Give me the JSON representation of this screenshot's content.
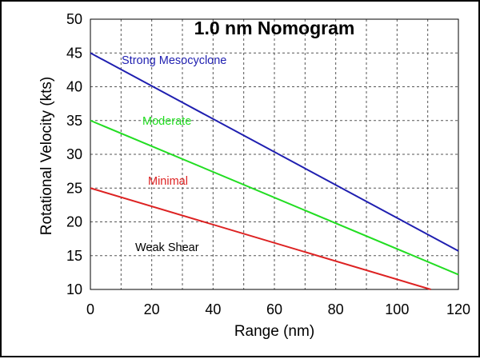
{
  "chart_data": {
    "type": "line",
    "title": "1.0 nm Nomogram",
    "xlabel": "Range (nm)",
    "ylabel": "Rotational Velocity (kts)",
    "xlim": [
      0,
      120
    ],
    "ylim": [
      10,
      50
    ],
    "x_ticks": [
      "0",
      "20",
      "40",
      "60",
      "80",
      "100",
      "120"
    ],
    "y_ticks": [
      "10",
      "15",
      "20",
      "25",
      "30",
      "35",
      "40",
      "45",
      "50"
    ],
    "grid": true,
    "series": [
      {
        "name": "Strong Mesocyclone",
        "color": "#1f1fb0",
        "points": [
          [
            0,
            45
          ],
          [
            120,
            15.7
          ]
        ]
      },
      {
        "name": "Moderate",
        "color": "#22dd22",
        "points": [
          [
            0,
            35
          ],
          [
            120,
            12.2
          ]
        ]
      },
      {
        "name": "Minimal",
        "color": "#dd2222",
        "points": [
          [
            0,
            25
          ],
          [
            111,
            10
          ]
        ]
      }
    ],
    "annotations": [
      {
        "text": "Weak Shear",
        "color": "#000000"
      }
    ]
  }
}
